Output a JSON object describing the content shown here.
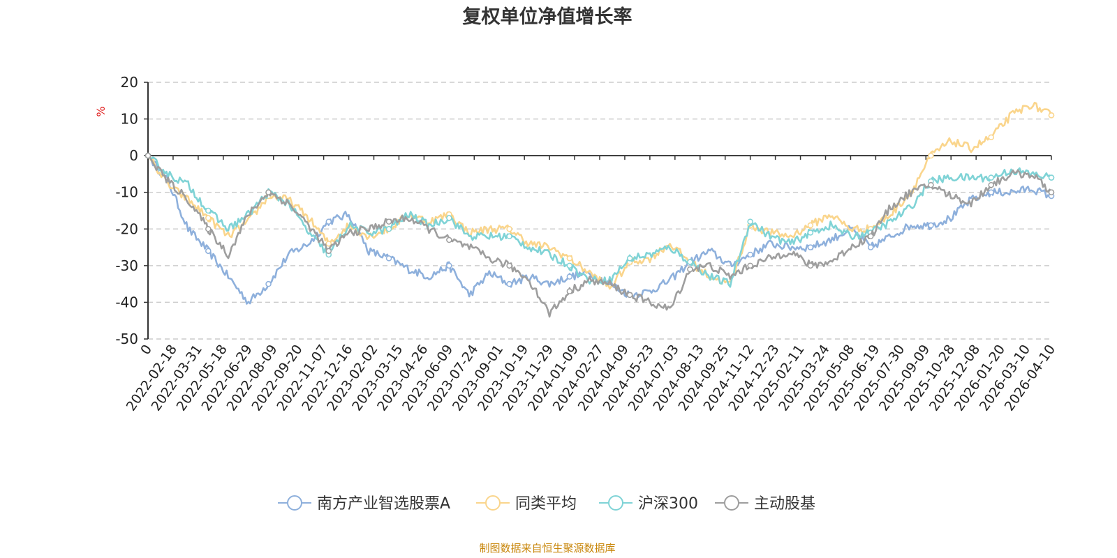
{
  "chart_data": {
    "type": "line",
    "title": "复权单位净值增长率",
    "ylabel": "%",
    "ylim": [
      -50,
      20
    ],
    "yticks": [
      20,
      10,
      0,
      -10,
      -20,
      -30,
      -40,
      -50
    ],
    "x_tick_labels": [
      "0",
      "2022-02-18",
      "2022-03-31",
      "2022-05-18",
      "2022-06-29",
      "2022-08-09",
      "2022-09-20",
      "2022-11-07",
      "2022-12-16",
      "2023-02-02",
      "2023-03-15",
      "2023-04-26",
      "2023-06-09",
      "2023-07-24",
      "2023-09-01",
      "2023-10-19",
      "2023-11-29",
      "2024-01-09",
      "2024-02-27",
      "2024-04-09",
      "2024-05-23",
      "2024-07-03",
      "2024-08-13",
      "2024-09-25",
      "2024-11-12",
      "2024-12-23",
      "2025-02-11",
      "2025-03-24",
      "2025-05-08",
      "2025-06-19",
      "2025-07-30",
      "2025-09-09",
      "2025-10-28",
      "2025-12-08",
      "2026-01-20",
      "2026-03-10",
      "2026-04-10"
    ],
    "series": [
      {
        "name": "南方产业智选股票A",
        "color": "#8eb0dc",
        "values": [
          0,
          -7,
          -20,
          -26,
          -33,
          -40,
          -35,
          -27,
          -24,
          -18,
          -16,
          -26,
          -28,
          -31,
          -33,
          -30,
          -38,
          -32,
          -35,
          -33,
          -35,
          -33,
          -32,
          -35,
          -38,
          -37,
          -34,
          -29,
          -26,
          -30,
          -27,
          -24,
          -25,
          -25,
          -23,
          -20,
          -25,
          -22,
          -19,
          -19,
          -17,
          -12,
          -10,
          -10,
          -9,
          -11
        ]
      },
      {
        "name": "同类平均",
        "color": "#fad58c",
        "values": [
          0,
          -8,
          -12,
          -17,
          -22,
          -18,
          -11,
          -12,
          -17,
          -24,
          -19,
          -22,
          -20,
          -16,
          -18,
          -16,
          -21,
          -20,
          -20,
          -24,
          -25,
          -28,
          -32,
          -36,
          -29,
          -28,
          -24,
          -29,
          -33,
          -35,
          -19,
          -21,
          -22,
          -19,
          -16,
          -20,
          -20,
          -16,
          -10,
          0,
          4,
          2,
          5,
          11,
          14,
          11
        ]
      },
      {
        "name": "沪深300",
        "color": "#7fd3d6",
        "values": [
          0,
          -5,
          -8,
          -15,
          -20,
          -16,
          -10,
          -13,
          -21,
          -27,
          -19,
          -21,
          -20,
          -16,
          -19,
          -17,
          -22,
          -22,
          -22,
          -25,
          -27,
          -30,
          -34,
          -34,
          -28,
          -27,
          -25,
          -29,
          -33,
          -35,
          -18,
          -22,
          -24,
          -21,
          -19,
          -22,
          -21,
          -18,
          -14,
          -7,
          -6,
          -6,
          -6,
          -4,
          -5,
          -6
        ]
      },
      {
        "name": "主动股基",
        "color": "#9e9e9e",
        "values": [
          0,
          -7,
          -12,
          -20,
          -27,
          -16,
          -10,
          -13,
          -19,
          -26,
          -21,
          -20,
          -18,
          -17,
          -20,
          -23,
          -25,
          -28,
          -30,
          -34,
          -43,
          -37,
          -34,
          -35,
          -38,
          -40,
          -42,
          -31,
          -30,
          -33,
          -30,
          -28,
          -26,
          -30,
          -29,
          -25,
          -22,
          -14,
          -10,
          -8,
          -11,
          -13,
          -8,
          -5,
          -5,
          -10
        ]
      }
    ]
  },
  "legend": [
    {
      "label": "南方产业智选股票A",
      "color": "#8eb0dc"
    },
    {
      "label": "同类平均",
      "color": "#fad58c"
    },
    {
      "label": "沪深300",
      "color": "#7fd3d6"
    },
    {
      "label": "主动股基",
      "color": "#9e9e9e"
    }
  ],
  "source": "制图数据来自恒生聚源数据库"
}
